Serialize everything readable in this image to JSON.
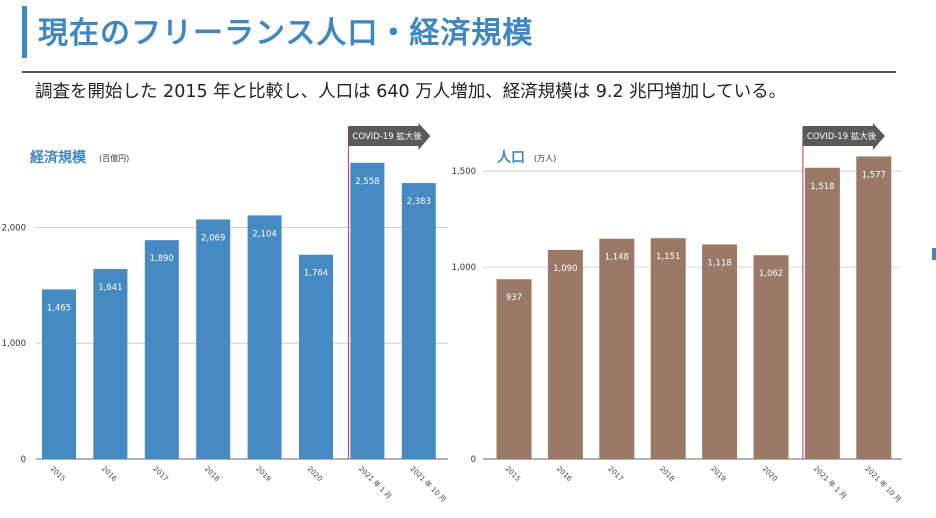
{
  "header": {
    "title": "現在のフリーランス人口・経済規模",
    "subtitle": "調査を開始した 2015 年と比較し、人口は 640 万人増加、経済規模は 9.2 兆円増加している。"
  },
  "chart_data": [
    {
      "type": "bar",
      "title": "経済規模",
      "unit": "(百億円)",
      "categories": [
        "2015",
        "2016",
        "2017",
        "2018",
        "2019",
        "2020",
        "2021 年 1 月",
        "2021 年 10 月"
      ],
      "values": [
        1465,
        1641,
        1890,
        2069,
        2104,
        1764,
        2558,
        2383
      ],
      "value_labels": [
        "1,465",
        "1,641",
        "1,890",
        "2,069",
        "2,104",
        "1,764",
        "2,558",
        "2,383"
      ],
      "yticks": [
        0,
        1000,
        2000
      ],
      "ytick_labels": [
        "0",
        "1,000",
        "2,000"
      ],
      "ylim": [
        0,
        2850
      ],
      "grid": true,
      "bar_color": "#468ac4",
      "title_color": "#3f87c0",
      "annotation": {
        "text": "COVID-19 拡大後",
        "from_category_index": 6,
        "color": "#595959",
        "line_color": "#c0394b"
      }
    },
    {
      "type": "bar",
      "title": "人口",
      "unit": "(万人)",
      "categories": [
        "2015",
        "2016",
        "2017",
        "2018",
        "2019",
        "2020",
        "2021 年 1 月",
        "2021 年 10 月"
      ],
      "values": [
        937,
        1090,
        1148,
        1151,
        1118,
        1062,
        1518,
        1577
      ],
      "value_labels": [
        "937",
        "1,090",
        "1,148",
        "1,151",
        "1,118",
        "1,062",
        "1,518",
        "1,577"
      ],
      "yticks": [
        0,
        1000,
        1500
      ],
      "ytick_labels": [
        "0",
        "1,000",
        "1,500"
      ],
      "ylim": [
        0,
        1720
      ],
      "grid": true,
      "bar_color": "#9a7a66",
      "title_color": "#3f87c0",
      "annotation": {
        "text": "COVID-19 拡大後",
        "from_category_index": 6,
        "color": "#595959",
        "line_color": "#c0394b"
      }
    }
  ]
}
